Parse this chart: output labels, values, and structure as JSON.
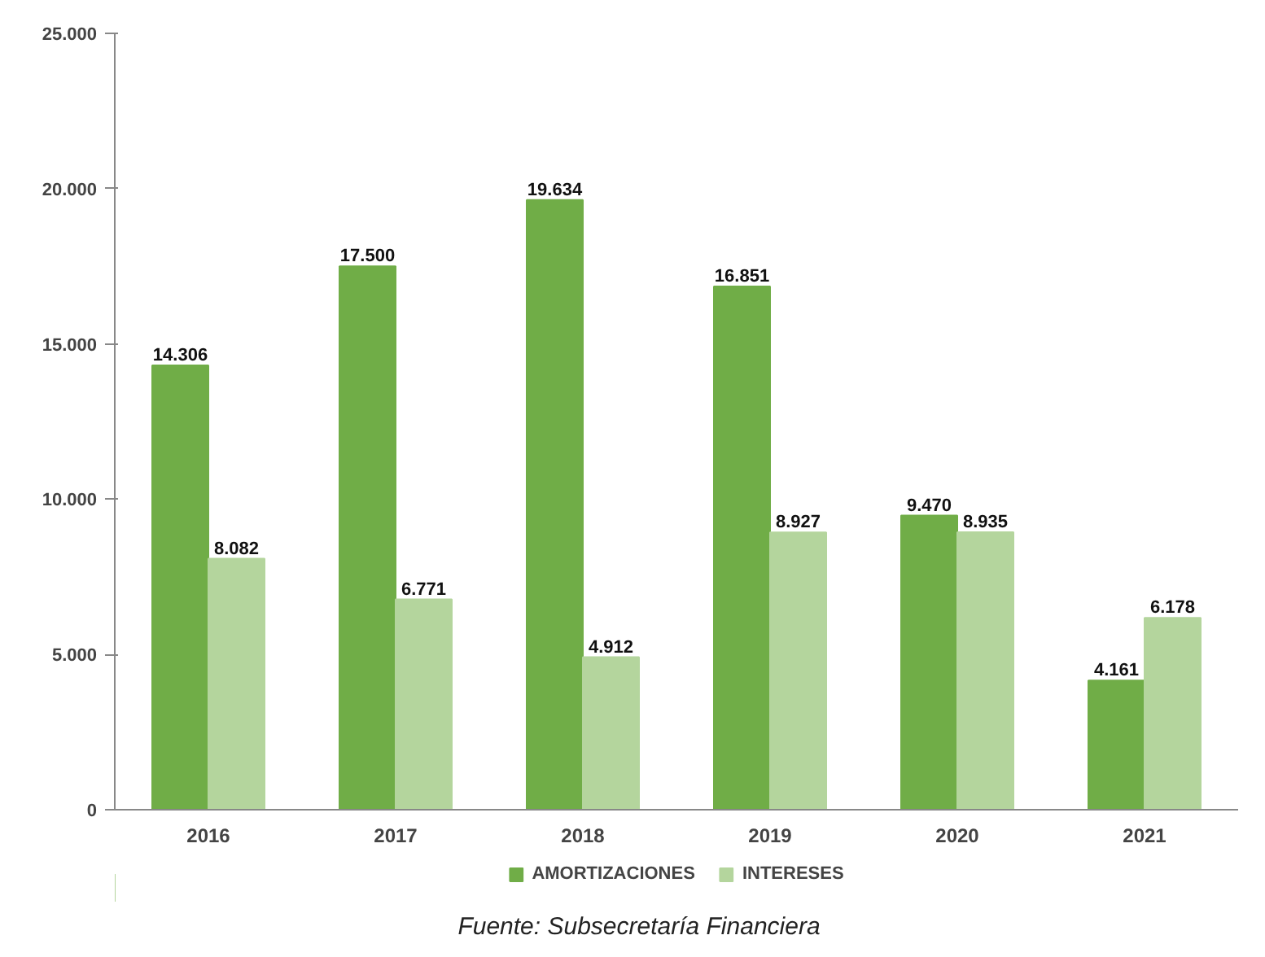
{
  "chart_data": {
    "type": "bar",
    "categories": [
      "2016",
      "2017",
      "2018",
      "2019",
      "2020",
      "2021"
    ],
    "series": [
      {
        "name": "AMORTIZACIONES",
        "color": "#70ad47",
        "values": [
          14306,
          17500,
          19634,
          16851,
          9470,
          4161
        ],
        "value_labels": [
          "14.306",
          "17.500",
          "19.634",
          "16.851",
          "9.470",
          "4.161"
        ]
      },
      {
        "name": "INTERESES",
        "color": "#b4d59d",
        "values": [
          8082,
          6771,
          4912,
          8927,
          8935,
          6178
        ],
        "value_labels": [
          "8.082",
          "6.771",
          "4.912",
          "8.927",
          "8.935",
          "6.178"
        ]
      }
    ],
    "ylim": [
      0,
      25000
    ],
    "yticks": [
      {
        "value": 0,
        "label": "0"
      },
      {
        "value": 5000,
        "label": "5.000"
      },
      {
        "value": 10000,
        "label": "10.000"
      },
      {
        "value": 15000,
        "label": "15.000"
      },
      {
        "value": 20000,
        "label": "20.000"
      },
      {
        "value": 25000,
        "label": "25.000"
      }
    ],
    "grid": false,
    "legend": "bottom",
    "annotations": [
      "Fuente: Subsecretaría Financiera"
    ]
  }
}
